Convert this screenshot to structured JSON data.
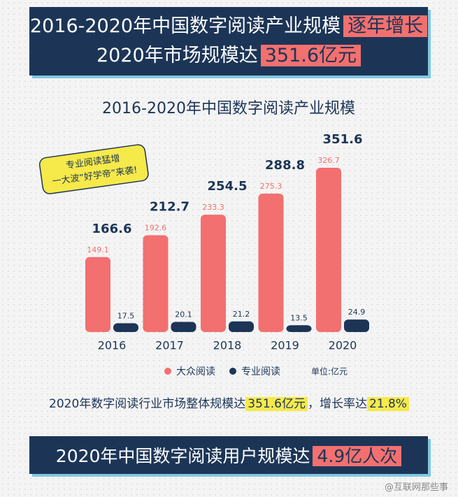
{
  "header": {
    "line1": "2016-2020年中国数字阅读产业规模",
    "line1_highlight": "逐年增长",
    "line2": "2020年市场规模达",
    "line2_highlight": "351.6亿元"
  },
  "chart_data": {
    "type": "bar",
    "title": "2016-2020年中国数字阅读产业规模",
    "categories": [
      "2016",
      "2017",
      "2018",
      "2019",
      "2020"
    ],
    "series": [
      {
        "name": "大众阅读",
        "color": "#f2706f",
        "values": [
          149.1,
          192.6,
          233.3,
          275.3,
          326.7
        ]
      },
      {
        "name": "专业阅读",
        "color": "#1c3557",
        "values": [
          17.5,
          20.1,
          21.2,
          13.5,
          24.9
        ]
      }
    ],
    "totals": [
      166.6,
      212.7,
      254.5,
      288.8,
      351.6
    ],
    "unit": "单位:亿元",
    "note": [
      "专业阅读猛增",
      "一大波“好学帝”来袭!"
    ]
  },
  "summary": {
    "text": "2020年数字阅读行业市场整体规模达",
    "highlight": "351.6亿元",
    "text2": "，增长率达",
    "highlight2": "21.8%"
  },
  "footer": {
    "text": "2020年中国数字阅读用户规模达",
    "highlight": "4.9亿人次"
  },
  "watermark": "@互联网那些事"
}
